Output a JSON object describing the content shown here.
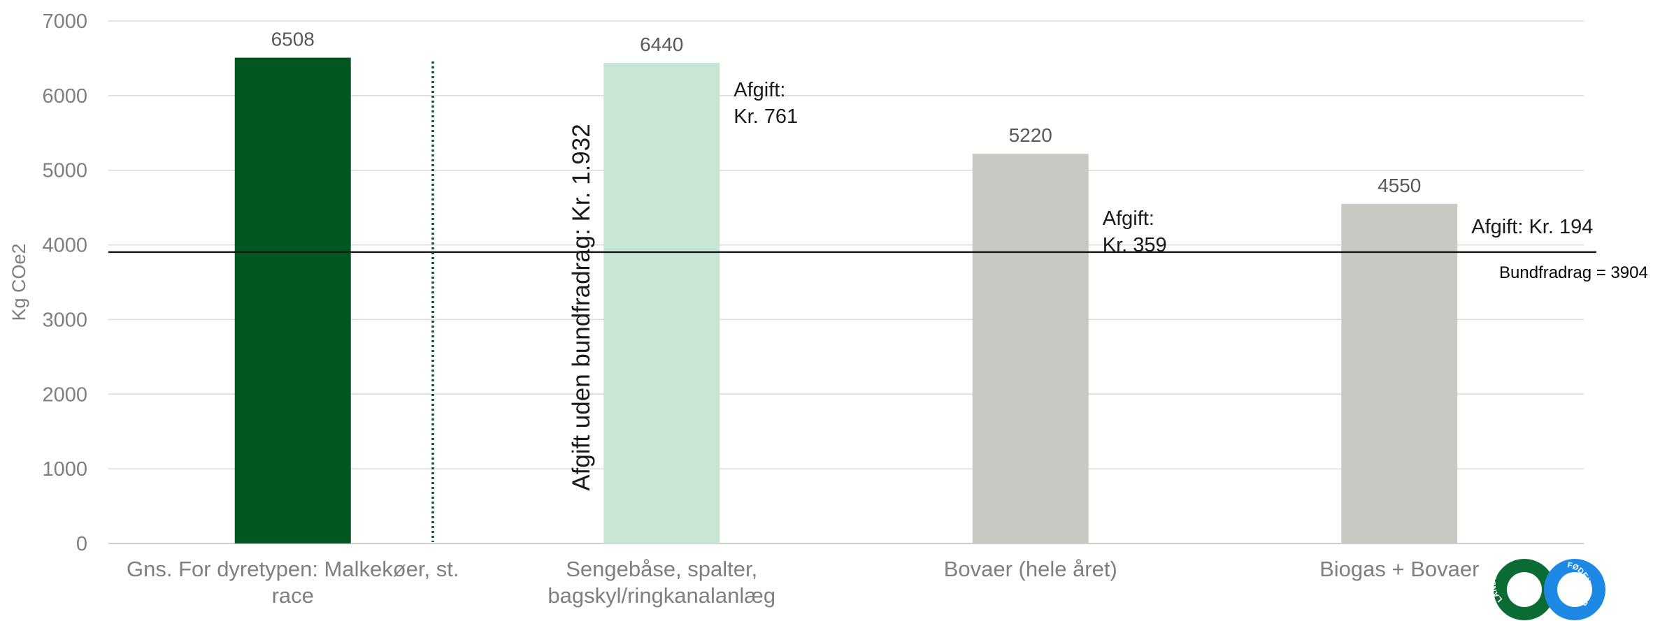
{
  "chart_data": {
    "type": "bar",
    "ylabel": "Kg COe2",
    "ylim": [
      0,
      7000
    ],
    "yticks": [
      0,
      1000,
      2000,
      3000,
      4000,
      5000,
      6000,
      7000
    ],
    "grid": true,
    "categories": [
      [
        "Gns. For dyretypen: Malkekøer, st.",
        "race"
      ],
      [
        "Sengebåse, spalter,",
        "bagskyl/ringkanalanlæg"
      ],
      [
        "Bovaer (hele året)"
      ],
      [
        "Biogas + Bovaer"
      ]
    ],
    "values": [
      6508,
      6440,
      5220,
      4550
    ],
    "value_labels": [
      "6508",
      "6440",
      "5220",
      "4550"
    ],
    "bar_colors": [
      "#02561f",
      "#c8e6d4",
      "#c9c9c4",
      "#c9c9c4"
    ],
    "fee_labels": [
      [],
      [
        "Afgift:",
        "Kr. 761"
      ],
      [
        "Afgift:",
        "Kr. 359"
      ],
      [
        "Afgift: Kr. 194"
      ]
    ],
    "reference_line": {
      "value": 3904,
      "label": "Bundfradrag = 3904",
      "color": "#1a1a1a"
    },
    "vertical_annotation": "Afgift uden bundfradrag: Kr. 1.932",
    "divider_color": "#02561f"
  },
  "logo": {
    "left_text": "LANDBRUG",
    "right_text": "FØDEVARER",
    "left_color": "#0b6b34",
    "right_color": "#1e88e5"
  }
}
